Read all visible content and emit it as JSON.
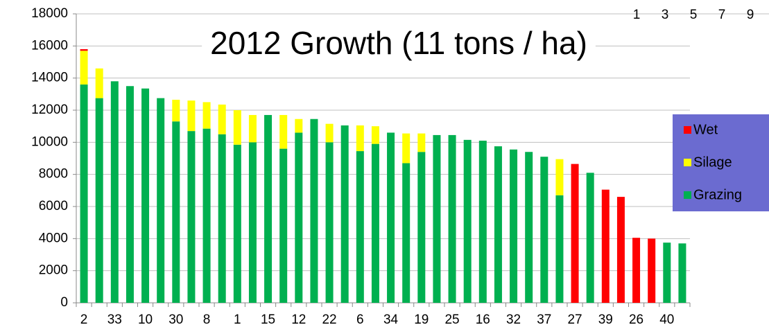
{
  "chart_data": {
    "type": "bar",
    "stacked": true,
    "title": "2012 Growth (11 tons / ha)",
    "corner_labels": [
      1,
      3,
      5,
      7,
      9
    ],
    "categories": [
      "2",
      null,
      "33",
      null,
      "10",
      null,
      "30",
      null,
      "8",
      null,
      "1",
      null,
      "15",
      null,
      "12",
      null,
      "22",
      null,
      "6",
      null,
      "34",
      null,
      "19",
      null,
      "25",
      null,
      "16",
      null,
      "32",
      null,
      "37",
      null,
      "27",
      null,
      "39",
      null,
      "26",
      null,
      "40",
      null
    ],
    "series": [
      {
        "name": "Wet",
        "color": "#ff0000",
        "values": [
          100,
          null,
          null,
          null,
          null,
          null,
          null,
          null,
          null,
          null,
          null,
          null,
          null,
          null,
          null,
          null,
          null,
          null,
          null,
          null,
          null,
          null,
          null,
          null,
          null,
          null,
          null,
          null,
          null,
          null,
          null,
          null,
          8650,
          null,
          7050,
          6600,
          4050,
          4000,
          null,
          null
        ]
      },
      {
        "name": "Silage",
        "color": "#ffff00",
        "values": [
          2100,
          1850,
          null,
          null,
          null,
          null,
          1350,
          1900,
          1650,
          1850,
          2150,
          1700,
          null,
          2100,
          850,
          null,
          1150,
          null,
          1600,
          1100,
          null,
          1850,
          1150,
          null,
          null,
          null,
          null,
          null,
          null,
          null,
          null,
          2250,
          null,
          null,
          null,
          null,
          null,
          null,
          null,
          null
        ]
      },
      {
        "name": "Grazing",
        "color": "#00b050",
        "values": [
          13600,
          12750,
          13800,
          13500,
          13350,
          12750,
          11300,
          10700,
          10850,
          10500,
          9850,
          10000,
          11700,
          9600,
          10600,
          11450,
          10000,
          11050,
          9450,
          9900,
          10600,
          8700,
          9400,
          10450,
          10450,
          10150,
          10100,
          9750,
          9550,
          9400,
          9100,
          6700,
          null,
          8100,
          null,
          null,
          null,
          null,
          3750,
          3700
        ]
      }
    ],
    "ylim": [
      0,
      18000
    ],
    "yticks": [
      0,
      2000,
      4000,
      6000,
      8000,
      10000,
      12000,
      14000,
      16000,
      18000
    ],
    "grid": true,
    "legend": "right"
  }
}
